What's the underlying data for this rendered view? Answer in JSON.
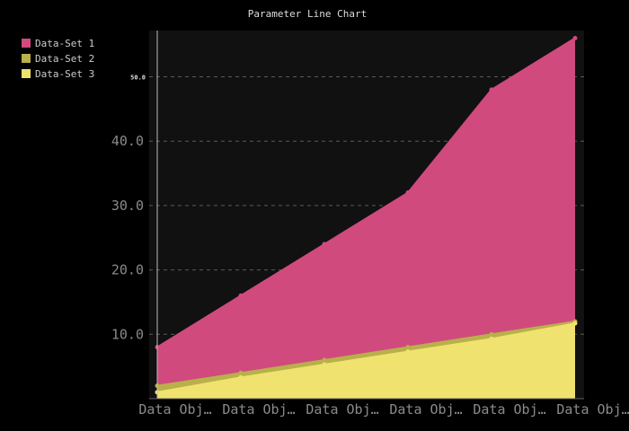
{
  "chart_data": {
    "type": "area",
    "title": "Parameter Line Chart",
    "xlabel": "",
    "ylabel": "",
    "categories": [
      "Data Obj…",
      "Data Obj…",
      "Data Obj…",
      "Data Obj…",
      "Data Obj…",
      "Data Obj…"
    ],
    "y_ticks": [
      "10.0",
      "20.0",
      "30.0",
      "40.0",
      "50.0"
    ],
    "ylim": [
      0,
      57
    ],
    "grid": true,
    "legend_position": "top-left",
    "series": [
      {
        "name": "Data-Set 1",
        "color": "#d04a7e",
        "values": [
          8,
          16,
          24,
          32,
          48,
          56
        ]
      },
      {
        "name": "Data-Set 2",
        "color": "#b8b04a",
        "values": [
          2,
          4,
          6,
          8,
          10,
          12
        ]
      },
      {
        "name": "Data-Set 3",
        "color": "#f0e26e",
        "values": [
          1,
          3.3,
          5.3,
          7.3,
          9.3,
          11.7
        ]
      }
    ]
  }
}
